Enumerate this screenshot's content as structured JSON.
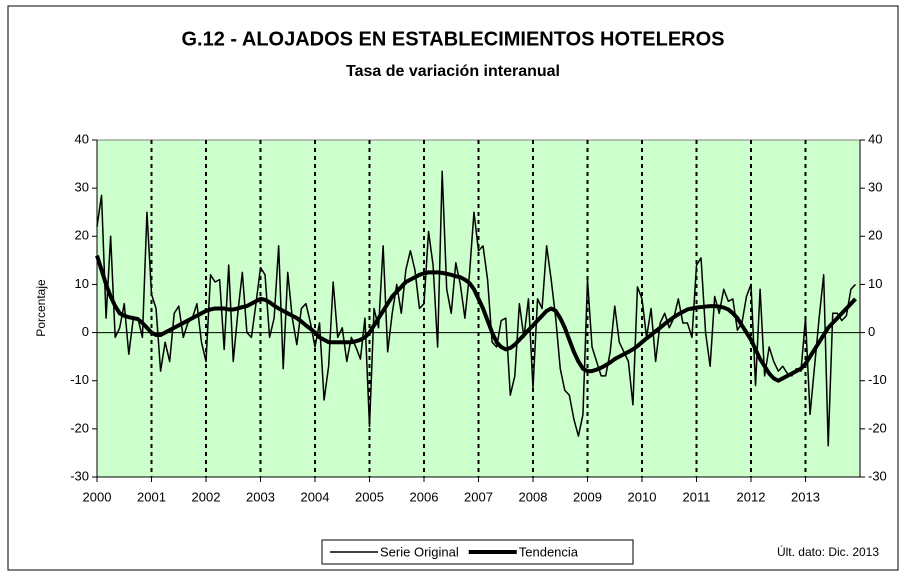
{
  "chart_data": {
    "type": "line",
    "title": "G.12 - ALOJADOS EN ESTABLECIMIENTOS HOTELEROS",
    "subtitle": "Tasa de variación interanual",
    "y_label": "Porcentaje",
    "annotation": "Últ. dato: Dic. 2013",
    "background": "#ccffcc",
    "xlim": [
      0,
      168
    ],
    "xticks": [
      {
        "value": 0,
        "label": "2000"
      },
      {
        "value": 12,
        "label": "2001"
      },
      {
        "value": 24,
        "label": "2002"
      },
      {
        "value": 36,
        "label": "2003"
      },
      {
        "value": 48,
        "label": "2004"
      },
      {
        "value": 60,
        "label": "2005"
      },
      {
        "value": 72,
        "label": "2006"
      },
      {
        "value": 84,
        "label": "2007"
      },
      {
        "value": 96,
        "label": "2008"
      },
      {
        "value": 108,
        "label": "2009"
      },
      {
        "value": 120,
        "label": "2010"
      },
      {
        "value": 132,
        "label": "2011"
      },
      {
        "value": 144,
        "label": "2012"
      },
      {
        "value": 156,
        "label": "2013"
      }
    ],
    "ylim": [
      -30,
      40
    ],
    "yticks": [
      -30,
      -20,
      -10,
      0,
      10,
      20,
      30,
      40
    ],
    "y2lim": [
      -30,
      40
    ],
    "y2ticks": [
      -30,
      -20,
      -10,
      0,
      10,
      20,
      30,
      40
    ],
    "x": [
      0,
      1,
      2,
      3,
      4,
      5,
      6,
      7,
      8,
      9,
      10,
      11,
      12,
      13,
      14,
      15,
      16,
      17,
      18,
      19,
      20,
      21,
      22,
      23,
      24,
      25,
      26,
      27,
      28,
      29,
      30,
      31,
      32,
      33,
      34,
      35,
      36,
      37,
      38,
      39,
      40,
      41,
      42,
      43,
      44,
      45,
      46,
      47,
      48,
      49,
      50,
      51,
      52,
      53,
      54,
      55,
      56,
      57,
      58,
      59,
      60,
      61,
      62,
      63,
      64,
      65,
      66,
      67,
      68,
      69,
      70,
      71,
      72,
      73,
      74,
      75,
      76,
      77,
      78,
      79,
      80,
      81,
      82,
      83,
      84,
      85,
      86,
      87,
      88,
      89,
      90,
      91,
      92,
      93,
      94,
      95,
      96,
      97,
      98,
      99,
      100,
      101,
      102,
      103,
      104,
      105,
      106,
      107,
      108,
      109,
      110,
      111,
      112,
      113,
      114,
      115,
      116,
      117,
      118,
      119,
      120,
      121,
      122,
      123,
      124,
      125,
      126,
      127,
      128,
      129,
      130,
      131,
      132,
      133,
      134,
      135,
      136,
      137,
      138,
      139,
      140,
      141,
      142,
      143,
      144,
      145,
      146,
      147,
      148,
      149,
      150,
      151,
      152,
      153,
      154,
      155,
      156,
      157,
      158,
      159,
      160,
      161,
      162,
      163,
      164,
      165,
      166,
      167
    ],
    "series": [
      {
        "name": "Serie Original",
        "color": "#000000",
        "line_width": 1.5,
        "values": [
          22,
          28.5,
          3,
          20,
          -1,
          1,
          6,
          -4.5,
          3,
          3,
          -1,
          25,
          8,
          5,
          -8,
          -2,
          -6,
          4,
          5.5,
          -1,
          2,
          3,
          6,
          -2,
          -6,
          12,
          10.5,
          11,
          -3.5,
          14,
          -6,
          4,
          12.5,
          0,
          -1,
          6,
          13.5,
          12,
          -1,
          3,
          18,
          -7.5,
          12.5,
          3,
          -2.5,
          5,
          6,
          2,
          -3,
          2,
          -14,
          -7,
          10.5,
          -1,
          1,
          -6,
          -1,
          -3,
          -5.5,
          3,
          -19.5,
          5,
          1,
          18,
          -4,
          4,
          10,
          4,
          13,
          17,
          13,
          5,
          6,
          21,
          14,
          -3,
          33.5,
          9,
          4,
          14.5,
          10,
          3,
          12,
          25,
          17,
          18,
          11,
          -2,
          -3,
          2.5,
          3,
          -13,
          -9,
          6,
          -1,
          7,
          -11.5,
          7,
          5,
          18,
          11,
          3,
          -7.5,
          -12,
          -13,
          -18,
          -21.5,
          -17,
          11,
          -3,
          -6,
          -9,
          -9,
          -4,
          5.5,
          -2,
          -4,
          -6,
          -15,
          9.5,
          7,
          -1,
          5,
          -6,
          2,
          4,
          1,
          3,
          7,
          2,
          2,
          -1,
          14,
          15.5,
          0,
          -7,
          7.5,
          4,
          9,
          6.5,
          7,
          0.5,
          2,
          7.5,
          10,
          -11,
          9,
          -9,
          -3,
          -6,
          -8,
          -7,
          -8.5,
          -9,
          -7.5,
          -8,
          3,
          -17,
          -7,
          3,
          12,
          -23.5,
          4,
          4,
          2.5,
          3.5,
          9,
          10
        ]
      },
      {
        "name": "Tendencia",
        "color": "#000000",
        "line_width": 4,
        "values": [
          16,
          13,
          10,
          7.5,
          5.5,
          4,
          3.5,
          3.2,
          3,
          2.8,
          2,
          1,
          0,
          -0.5,
          -0.5,
          0,
          0.5,
          1,
          1.5,
          2,
          2.5,
          3,
          3.5,
          4,
          4.5,
          4.8,
          5,
          5,
          5,
          4.8,
          4.8,
          5,
          5.3,
          5.5,
          6,
          6.5,
          7,
          6.8,
          6.3,
          5.6,
          5,
          4.5,
          4,
          3.5,
          3,
          2.3,
          1.5,
          0.8,
          0,
          -1,
          -1.5,
          -2,
          -2,
          -2,
          -2,
          -2,
          -2,
          -1.8,
          -1.5,
          -1,
          0,
          1.5,
          3,
          4.5,
          6,
          7.5,
          8.5,
          9.5,
          10.5,
          11,
          11.5,
          12,
          12.3,
          12.5,
          12.5,
          12.5,
          12.4,
          12.2,
          12,
          11.7,
          11.5,
          11,
          10.3,
          9,
          7,
          5,
          2.5,
          0,
          -2,
          -3,
          -3.5,
          -3.2,
          -2.5,
          -1.5,
          -0.5,
          0.5,
          1.5,
          2.5,
          3.5,
          4.5,
          5,
          4.5,
          3,
          1,
          -1.5,
          -4,
          -6,
          -7.5,
          -8,
          -8,
          -7.7,
          -7.3,
          -6.8,
          -6.2,
          -5.5,
          -5,
          -4.5,
          -4,
          -3.5,
          -2.8,
          -2,
          -1.2,
          -0.5,
          0.3,
          1,
          1.8,
          2.5,
          3.2,
          3.8,
          4.3,
          4.8,
          5,
          5.2,
          5.3,
          5.4,
          5.5,
          5.5,
          5.4,
          5.2,
          4.8,
          4,
          3,
          1.5,
          0,
          -1.5,
          -3.5,
          -5.5,
          -7,
          -8.5,
          -9.5,
          -10,
          -9.5,
          -9,
          -8.5,
          -8,
          -7.5,
          -6.5,
          -5,
          -3.5,
          -2,
          -0.5,
          1,
          2,
          3,
          4,
          5,
          6,
          7
        ]
      }
    ]
  }
}
